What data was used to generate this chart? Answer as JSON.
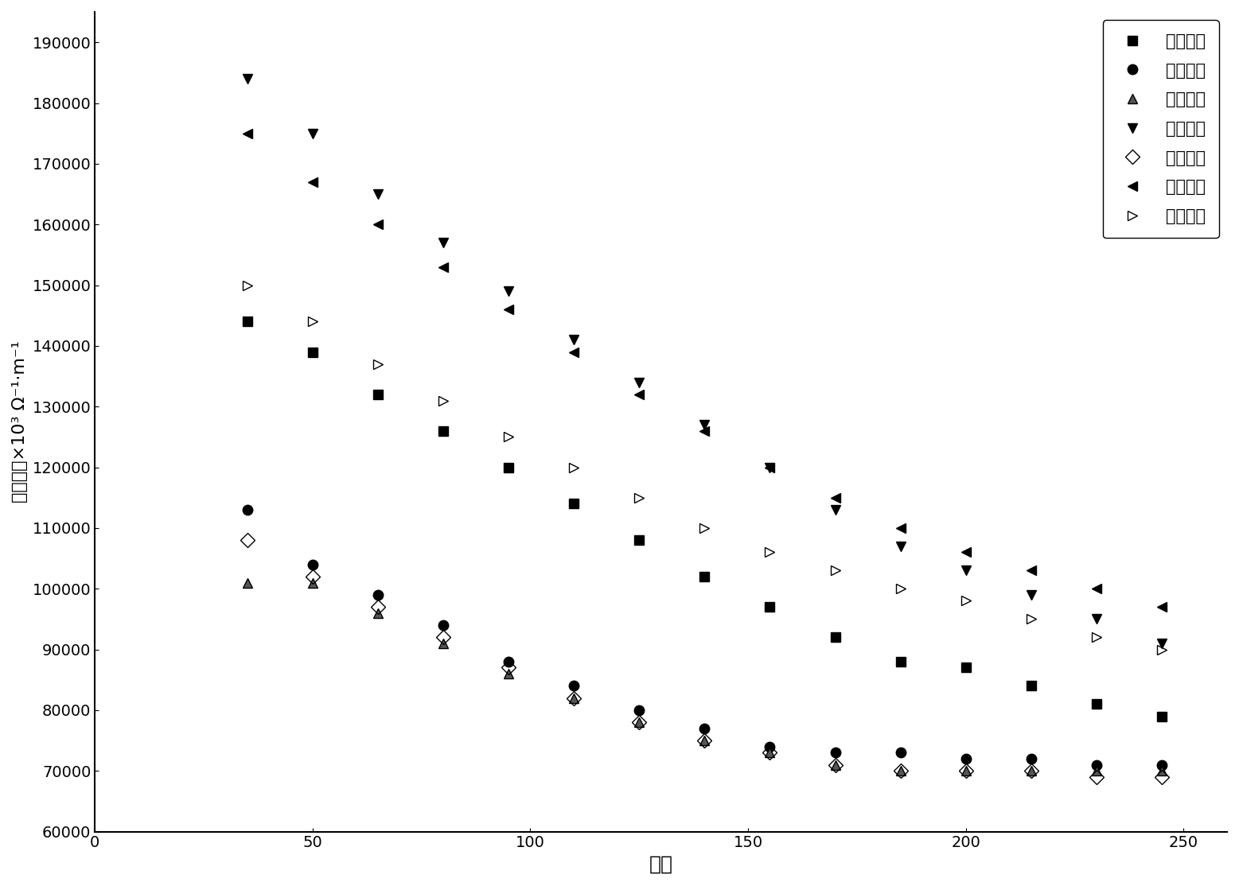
{
  "title": "",
  "xlabel": "温度",
  "ylabel": "电导率，×10³ Ω⁻¹·m⁻¹",
  "xlim": [
    0,
    260
  ],
  "ylim": [
    60000,
    195000
  ],
  "xticks": [
    0,
    50,
    100,
    150,
    200,
    250
  ],
  "yticks": [
    60000,
    70000,
    80000,
    90000,
    100000,
    110000,
    120000,
    130000,
    140000,
    150000,
    160000,
    170000,
    180000,
    190000
  ],
  "series": [
    {
      "label": "实施例一",
      "marker": "s",
      "color": "#000000",
      "fillstyle": "full",
      "x": [
        35,
        50,
        65,
        80,
        95,
        110,
        125,
        140,
        155,
        170,
        185,
        200,
        215,
        230,
        245
      ],
      "y": [
        144000,
        139000,
        132000,
        126000,
        120000,
        114000,
        108000,
        102000,
        97000,
        92000,
        88000,
        87000,
        84000,
        81000,
        79000
      ]
    },
    {
      "label": "实施例二",
      "marker": "o",
      "color": "#000000",
      "fillstyle": "full",
      "x": [
        35,
        50,
        65,
        80,
        95,
        110,
        125,
        140,
        155,
        170,
        185,
        200,
        215,
        230,
        245
      ],
      "y": [
        113000,
        104000,
        99000,
        94000,
        88000,
        84000,
        80000,
        77000,
        74000,
        73000,
        73000,
        72000,
        72000,
        71000,
        71000
      ]
    },
    {
      "label": "实施例三",
      "marker": "^",
      "color": "#555555",
      "fillstyle": "full",
      "x": [
        35,
        50,
        65,
        80,
        95,
        110,
        125,
        140,
        155,
        170,
        185,
        200,
        215,
        230,
        245
      ],
      "y": [
        101000,
        101000,
        96000,
        91000,
        86000,
        82000,
        78000,
        75000,
        73000,
        71000,
        70000,
        70000,
        70000,
        70000,
        70000
      ]
    },
    {
      "label": "实施例四",
      "marker": "v",
      "color": "#000000",
      "fillstyle": "full",
      "x": [
        35,
        50,
        65,
        80,
        95,
        110,
        125,
        140,
        155,
        170,
        185,
        200,
        215,
        230,
        245
      ],
      "y": [
        184000,
        175000,
        165000,
        157000,
        149000,
        141000,
        134000,
        127000,
        120000,
        113000,
        107000,
        103000,
        99000,
        95000,
        91000
      ]
    },
    {
      "label": "实施例五",
      "marker": "D",
      "color": "#888888",
      "fillstyle": "none",
      "x": [
        35,
        50,
        65,
        80,
        95,
        110,
        125,
        140,
        155,
        170,
        185,
        200,
        215,
        230,
        245
      ],
      "y": [
        108000,
        102000,
        97000,
        92000,
        87000,
        82000,
        78000,
        75000,
        73000,
        71000,
        70000,
        70000,
        70000,
        69000,
        69000
      ]
    },
    {
      "label": "对比例一",
      "marker": "<",
      "color": "#000000",
      "fillstyle": "full",
      "x": [
        35,
        50,
        65,
        80,
        95,
        110,
        125,
        140,
        155,
        170,
        185,
        200,
        215,
        230,
        245
      ],
      "y": [
        175000,
        167000,
        160000,
        153000,
        146000,
        139000,
        132000,
        126000,
        120000,
        115000,
        110000,
        106000,
        103000,
        100000,
        97000
      ]
    },
    {
      "label": "对比例二",
      "marker": ">",
      "color": "#000000",
      "fillstyle": "none",
      "x": [
        35,
        50,
        65,
        80,
        95,
        110,
        125,
        140,
        155,
        170,
        185,
        200,
        215,
        230,
        245
      ],
      "y": [
        150000,
        144000,
        137000,
        131000,
        125000,
        120000,
        115000,
        110000,
        106000,
        103000,
        100000,
        98000,
        95000,
        92000,
        90000
      ]
    }
  ],
  "legend_loc": "upper right",
  "background_color": "#ffffff",
  "markersize": 9
}
